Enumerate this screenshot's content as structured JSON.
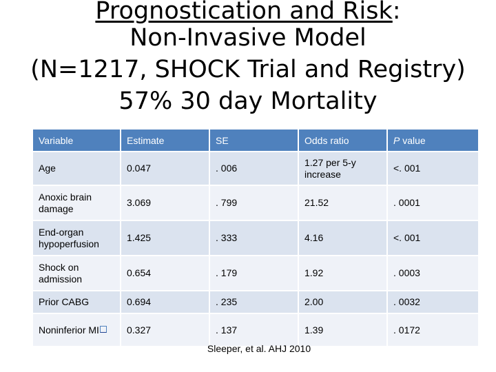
{
  "title": {
    "line1_underlined": "Prognostication and Risk",
    "line1_suffix": ":",
    "line2": "Non-Invasive Model",
    "line3": "(N=1217, SHOCK Trial and Registry)",
    "line4": "57% 30 day Mortality"
  },
  "table": {
    "headers": {
      "variable": "Variable",
      "estimate": "Estimate",
      "se": "SE",
      "odds_ratio": "Odds ratio",
      "p_label": "P",
      "p_suffix": " value"
    },
    "rows": [
      {
        "variable": "Age",
        "estimate": "0.047",
        "se": ". 006",
        "odds_ratio": "1.27 per 5-y increase",
        "p": "<. 001"
      },
      {
        "variable": "Anoxic brain damage",
        "estimate": "3.069",
        "se": ". 799",
        "odds_ratio": "21.52",
        "p": ". 0001"
      },
      {
        "variable": "End-organ hypoperfusion",
        "estimate": "1.425",
        "se": ". 333",
        "odds_ratio": "4.16",
        "p": "<. 001"
      },
      {
        "variable": "Shock on admission",
        "estimate": "0.654",
        "se": ". 179",
        "odds_ratio": "1.92",
        "p": ". 0003"
      },
      {
        "variable": "Prior CABG",
        "estimate": "0.694",
        "se": ". 235",
        "odds_ratio": "2.00",
        "p": ". 0032"
      },
      {
        "variable": "Noninferior MI",
        "estimate": "0.327",
        "se": ". 137",
        "odds_ratio": "1.39",
        "p": ". 0172"
      }
    ]
  },
  "citation": "Sleeper, et al. AHJ 2010"
}
